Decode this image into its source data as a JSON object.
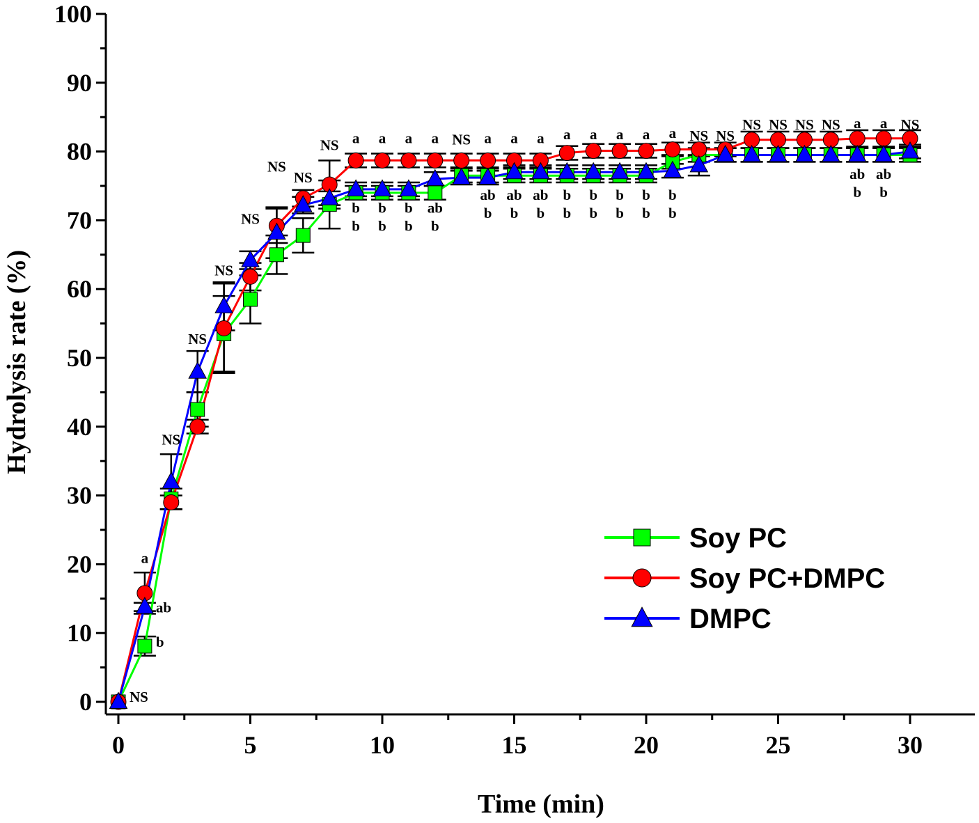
{
  "chart_data": {
    "type": "line",
    "title": "",
    "xlabel": "Time (min)",
    "ylabel": "Hydrolysis rate (%)",
    "xlim": [
      0,
      30
    ],
    "ylim": [
      0,
      100
    ],
    "xticks": [
      0,
      5,
      10,
      15,
      20,
      25,
      30
    ],
    "yticks": [
      0,
      10,
      20,
      30,
      40,
      50,
      60,
      70,
      80,
      90,
      100
    ],
    "legend_position": "bottom-right",
    "x": [
      0,
      1,
      2,
      3,
      4,
      5,
      6,
      7,
      8,
      9,
      10,
      11,
      12,
      13,
      14,
      15,
      16,
      17,
      18,
      19,
      20,
      21,
      22,
      23,
      24,
      25,
      26,
      27,
      28,
      29,
      30
    ],
    "series": [
      {
        "name": "Soy PC",
        "color": "#00ff00",
        "marker": "square",
        "values": [
          0,
          8.1,
          29.5,
          42.5,
          53.5,
          58.5,
          65,
          67.8,
          72.3,
          74,
          74,
          74,
          74,
          76.5,
          76.5,
          76.5,
          76.5,
          76.5,
          76.5,
          76.5,
          76.5,
          78.5,
          79.5,
          79.5,
          79.5,
          79.5,
          79.5,
          79.5,
          79.5,
          79.5,
          79.5
        ],
        "errors": [
          0,
          1.4,
          1.5,
          2.5,
          5.5,
          3.5,
          2.8,
          2.5,
          3.5,
          1,
          1,
          1,
          1,
          1,
          1,
          1,
          1,
          1,
          1,
          1,
          1,
          1,
          1,
          1,
          1,
          1,
          1,
          1,
          1,
          1,
          1
        ]
      },
      {
        "name": "Soy PC+DMPC",
        "color": "#ff0000",
        "marker": "circle",
        "values": [
          0,
          15.8,
          29,
          40,
          54.3,
          61.8,
          69.2,
          73.2,
          75.2,
          78.7,
          78.7,
          78.7,
          78.7,
          78.7,
          78.7,
          78.7,
          78.7,
          79.8,
          80.1,
          80.1,
          80.1,
          80.3,
          80.3,
          80.3,
          81.7,
          81.7,
          81.7,
          81.7,
          81.9,
          81.9,
          81.9
        ],
        "errors": [
          0,
          3,
          1,
          1,
          6.5,
          2,
          2.5,
          1.2,
          3.5,
          1,
          1,
          1,
          1,
          1,
          1,
          1,
          1,
          1,
          1,
          1,
          1,
          1,
          1,
          1,
          1.2,
          1.2,
          1.2,
          1.2,
          1.2,
          1.2,
          1.2
        ]
      },
      {
        "name": "DMPC",
        "color": "#0000ff",
        "marker": "triangle",
        "values": [
          0,
          13.8,
          32,
          48,
          57.5,
          64.2,
          68.2,
          72.2,
          73.2,
          74.5,
          74.5,
          74.5,
          76,
          76.2,
          76.2,
          77,
          77,
          77,
          77,
          77,
          77,
          77.2,
          78,
          79.5,
          79.5,
          79.5,
          79.5,
          79.5,
          79.5,
          79.5,
          80
        ],
        "errors": [
          0,
          0.6,
          4,
          3,
          3.5,
          1.3,
          3.7,
          1.2,
          1,
          1,
          1,
          1,
          1,
          1,
          1,
          1,
          1,
          1,
          1,
          1,
          1,
          1,
          1.5,
          1,
          1,
          1,
          1,
          1,
          1,
          1,
          1
        ]
      }
    ],
    "annotations": [
      {
        "x": 1,
        "lines": [
          "a"
        ],
        "y_value": 20.2
      },
      {
        "x": 1,
        "lines": [
          "ab"
        ],
        "y_value": 13,
        "side": "right"
      },
      {
        "x": 1,
        "lines": [
          "b"
        ],
        "y_value": 8,
        "side": "right"
      },
      {
        "x": 0,
        "lines": [
          "NS"
        ],
        "y_value": 0,
        "side": "right"
      },
      {
        "x": 2,
        "lines": [
          "NS"
        ],
        "y_value": 37.4
      },
      {
        "x": 3,
        "lines": [
          "NS"
        ],
        "y_value": 52
      },
      {
        "x": 4,
        "lines": [
          "NS"
        ],
        "y_value": 62
      },
      {
        "x": 5,
        "lines": [
          "NS"
        ],
        "y_value": 69.5
      },
      {
        "x": 6,
        "lines": [
          "NS"
        ],
        "y_value": 77.1
      },
      {
        "x": 7,
        "lines": [
          "NS"
        ],
        "y_value": 75.5
      },
      {
        "x": 8,
        "lines": [
          "NS"
        ],
        "y_value": 80.2
      },
      {
        "x": 9,
        "lines": [
          "a"
        ],
        "y_value": 81.2
      },
      {
        "x": 10,
        "lines": [
          "a"
        ],
        "y_value": 81.2
      },
      {
        "x": 11,
        "lines": [
          "a"
        ],
        "y_value": 81.2
      },
      {
        "x": 12,
        "lines": [
          "a"
        ],
        "y_value": 81.2
      },
      {
        "x": 13,
        "lines": [
          "NS"
        ],
        "y_value": 81
      },
      {
        "x": 14,
        "lines": [
          "a"
        ],
        "y_value": 81.2
      },
      {
        "x": 15,
        "lines": [
          "a"
        ],
        "y_value": 81.2
      },
      {
        "x": 16,
        "lines": [
          "a"
        ],
        "y_value": 81.2
      },
      {
        "x": 17,
        "lines": [
          "a"
        ],
        "y_value": 81.8
      },
      {
        "x": 18,
        "lines": [
          "a"
        ],
        "y_value": 81.8
      },
      {
        "x": 19,
        "lines": [
          "a"
        ],
        "y_value": 81.8
      },
      {
        "x": 20,
        "lines": [
          "a"
        ],
        "y_value": 81.8
      },
      {
        "x": 21,
        "lines": [
          "a"
        ],
        "y_value": 82
      },
      {
        "x": 22,
        "lines": [
          "NS"
        ],
        "y_value": 81.6
      },
      {
        "x": 23,
        "lines": [
          "NS"
        ],
        "y_value": 81.6
      },
      {
        "x": 24,
        "lines": [
          "NS"
        ],
        "y_value": 83.2
      },
      {
        "x": 25,
        "lines": [
          "NS"
        ],
        "y_value": 83.2
      },
      {
        "x": 26,
        "lines": [
          "NS"
        ],
        "y_value": 83.2
      },
      {
        "x": 27,
        "lines": [
          "NS"
        ],
        "y_value": 83.2
      },
      {
        "x": 28,
        "lines": [
          "a"
        ],
        "y_value": 83.4
      },
      {
        "x": 29,
        "lines": [
          "a"
        ],
        "y_value": 83.4
      },
      {
        "x": 30,
        "lines": [
          "NS"
        ],
        "y_value": 83.2
      },
      {
        "x": 9,
        "lines": [
          "b",
          "b"
        ],
        "y_value": 71.1
      },
      {
        "x": 10,
        "lines": [
          "b",
          "b"
        ],
        "y_value": 71.1
      },
      {
        "x": 11,
        "lines": [
          "b",
          "b"
        ],
        "y_value": 71.1
      },
      {
        "x": 12,
        "lines": [
          "ab",
          "b"
        ],
        "y_value": 71.1
      },
      {
        "x": 14,
        "lines": [
          "ab",
          "b"
        ],
        "y_value": 73
      },
      {
        "x": 15,
        "lines": [
          "ab",
          "b"
        ],
        "y_value": 73
      },
      {
        "x": 16,
        "lines": [
          "ab",
          "b"
        ],
        "y_value": 73
      },
      {
        "x": 17,
        "lines": [
          "b",
          "b"
        ],
        "y_value": 73
      },
      {
        "x": 18,
        "lines": [
          "b",
          "b"
        ],
        "y_value": 73
      },
      {
        "x": 19,
        "lines": [
          "b",
          "b"
        ],
        "y_value": 73
      },
      {
        "x": 20,
        "lines": [
          "b",
          "b"
        ],
        "y_value": 73
      },
      {
        "x": 21,
        "lines": [
          "b",
          "b"
        ],
        "y_value": 73
      },
      {
        "x": 28,
        "lines": [
          "ab",
          "b"
        ],
        "y_value": 76
      },
      {
        "x": 29,
        "lines": [
          "ab",
          "b"
        ],
        "y_value": 76
      }
    ]
  }
}
